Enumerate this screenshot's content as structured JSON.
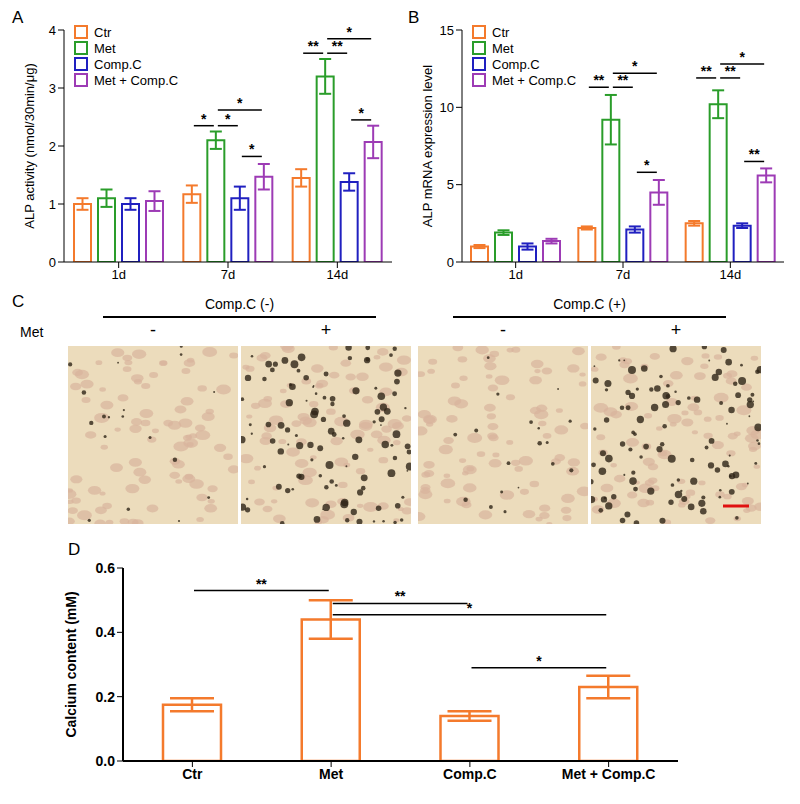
{
  "chart_data": [
    {
      "type": "bar",
      "title": "A",
      "ylabel": "ALP activity (nmol/30min/μg)",
      "categories": [
        "1d",
        "7d",
        "14d"
      ],
      "ylim": [
        0,
        4
      ],
      "yticks": [
        0,
        1,
        2,
        3,
        4
      ],
      "legend": "upper left",
      "series": [
        {
          "name": "Ctr",
          "color": "#f47a2c",
          "values": [
            1.0,
            1.17,
            1.45
          ],
          "errors": [
            0.1,
            0.15,
            0.15
          ]
        },
        {
          "name": "Met",
          "color": "#2a9d2a",
          "values": [
            1.1,
            2.1,
            3.2
          ],
          "errors": [
            0.15,
            0.15,
            0.3
          ]
        },
        {
          "name": "Comp.C",
          "color": "#2020c0",
          "values": [
            1.0,
            1.1,
            1.38
          ],
          "errors": [
            0.1,
            0.2,
            0.15
          ]
        },
        {
          "name": "Met + Comp.C",
          "color": "#9d3bb5",
          "values": [
            1.05,
            1.47,
            2.07
          ],
          "errors": [
            0.17,
            0.22,
            0.28
          ]
        }
      ],
      "annotations": [
        {
          "text": "*",
          "category": "7d",
          "from": "Ctr",
          "to": "Met",
          "y": 2.35
        },
        {
          "text": "*",
          "category": "7d",
          "from": "Met",
          "to": "Comp.C",
          "y": 2.35
        },
        {
          "text": "*",
          "category": "7d",
          "from": "Met",
          "to": "Met + Comp.C",
          "y": 2.62
        },
        {
          "text": "*",
          "category": "7d",
          "from": "Comp.C",
          "to": "Met + Comp.C",
          "y": 1.82
        },
        {
          "text": "**",
          "category": "14d",
          "from": "Ctr",
          "to": "Met",
          "y": 3.6
        },
        {
          "text": "**",
          "category": "14d",
          "from": "Met",
          "to": "Comp.C",
          "y": 3.6
        },
        {
          "text": "*",
          "category": "14d",
          "from": "Met",
          "to": "Met + Comp.C",
          "y": 3.85
        },
        {
          "text": "*",
          "category": "14d",
          "from": "Comp.C",
          "to": "Met + Comp.C",
          "y": 2.45
        }
      ]
    },
    {
      "type": "bar",
      "title": "B",
      "ylabel": "ALP mRNA expression level",
      "categories": [
        "1d",
        "7d",
        "14d"
      ],
      "ylim": [
        0,
        15
      ],
      "yticks": [
        0,
        5,
        10,
        15
      ],
      "legend": "upper left",
      "series": [
        {
          "name": "Ctr",
          "color": "#f47a2c",
          "values": [
            1.0,
            2.2,
            2.5
          ],
          "errors": [
            0.1,
            0.1,
            0.15
          ]
        },
        {
          "name": "Met",
          "color": "#2a9d2a",
          "values": [
            1.9,
            9.2,
            10.2
          ],
          "errors": [
            0.15,
            1.6,
            0.9
          ]
        },
        {
          "name": "Comp.C",
          "color": "#2020c0",
          "values": [
            1.0,
            2.1,
            2.35
          ],
          "errors": [
            0.2,
            0.2,
            0.15
          ]
        },
        {
          "name": "Met + Comp.C",
          "color": "#9d3bb5",
          "values": [
            1.35,
            4.5,
            5.6
          ],
          "errors": [
            0.15,
            0.8,
            0.45
          ]
        }
      ],
      "annotations": [
        {
          "text": "**",
          "category": "7d",
          "from": "Ctr",
          "to": "Met",
          "y": 11.3
        },
        {
          "text": "**",
          "category": "7d",
          "from": "Met",
          "to": "Comp.C",
          "y": 11.3
        },
        {
          "text": "*",
          "category": "7d",
          "from": "Met",
          "to": "Met + Comp.C",
          "y": 12.2
        },
        {
          "text": "*",
          "category": "7d",
          "from": "Comp.C",
          "to": "Met + Comp.C",
          "y": 5.8
        },
        {
          "text": "**",
          "category": "14d",
          "from": "Ctr",
          "to": "Met",
          "y": 11.9
        },
        {
          "text": "**",
          "category": "14d",
          "from": "Met",
          "to": "Comp.C",
          "y": 11.9
        },
        {
          "text": "*",
          "category": "14d",
          "from": "Met",
          "to": "Met + Comp.C",
          "y": 12.8
        },
        {
          "text": "**",
          "category": "14d",
          "from": "Comp.C",
          "to": "Met + Comp.C",
          "y": 6.5
        }
      ]
    },
    {
      "type": "bar",
      "title": "D",
      "ylabel": "Calcium content (mM)",
      "categories": [
        "Ctr",
        "Met",
        "Comp.C",
        "Met + Comp.C"
      ],
      "values": [
        0.175,
        0.44,
        0.14,
        0.23
      ],
      "errors": [
        0.02,
        0.06,
        0.015,
        0.035
      ],
      "color": "#f47a2c",
      "ylim": [
        0,
        0.6
      ],
      "yticks": [
        {
          "value": 0,
          "label": "0.0"
        },
        {
          "value": 0.2,
          "label": "0.2"
        },
        {
          "value": 0.4,
          "label": "0.4"
        },
        {
          "value": 0.6,
          "label": "0.6"
        }
      ],
      "annotations": [
        {
          "text": "**",
          "from": "Ctr",
          "to": "Met",
          "y": 0.53
        },
        {
          "text": "**",
          "from": "Met",
          "to": "Comp.C",
          "y": 0.49
        },
        {
          "text": "*",
          "from": "Met",
          "to": "Met + Comp.C",
          "y": 0.455
        },
        {
          "text": "*",
          "from": "Comp.C",
          "to": "Met + Comp.C",
          "y": 0.29
        }
      ]
    }
  ],
  "panel_c": {
    "title": "C",
    "row_label": "Met",
    "groups": [
      {
        "label": "Comp.C (-)",
        "met": [
          "-",
          "+"
        ]
      },
      {
        "label": "Comp.C (+)",
        "met": [
          "-",
          "+"
        ]
      }
    ]
  }
}
